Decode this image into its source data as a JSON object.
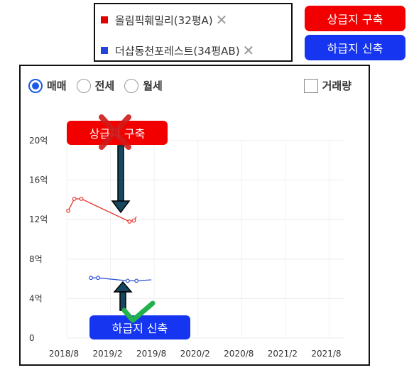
{
  "legend": {
    "items": [
      {
        "name": "올림픽훼밀리(32평A)",
        "color": "#e00000"
      },
      {
        "name": "더샵동천포레스트(34평AB)",
        "color": "#2244dd"
      }
    ],
    "remove_label": "✕"
  },
  "tags": {
    "red": "상급지 구축",
    "blue": "하급지 신축"
  },
  "controls": {
    "radios": [
      {
        "label": "매매",
        "checked": true
      },
      {
        "label": "전세",
        "checked": false
      },
      {
        "label": "월세",
        "checked": false
      }
    ],
    "volume_label": "거래량"
  },
  "annotations": {
    "red": "상급지 구축",
    "blue": "하급지 신축"
  },
  "chart_data": {
    "type": "line",
    "y_tick_labels": [
      "0",
      "4억",
      "8억",
      "12억",
      "16억",
      "20억"
    ],
    "y_ticks": [
      0,
      4,
      8,
      12,
      16,
      20
    ],
    "ylim": [
      0,
      20
    ],
    "x_tick_labels": [
      "2018/8",
      "2019/2",
      "2019/8",
      "2020/2",
      "2020/8",
      "2021/2",
      "2021/8"
    ],
    "x_ticks": [
      2018.583,
      2019.083,
      2019.583,
      2020.083,
      2020.583,
      2021.083,
      2021.583
    ],
    "xlim": [
      2018.583,
      2021.75
    ],
    "grid": true,
    "series": [
      {
        "name": "올림픽훼밀리(32평A)",
        "color": "#e8302a",
        "x": [
          2018.6,
          2018.67,
          2018.75,
          2019.3,
          2019.35,
          2019.38
        ],
        "y": [
          12.9,
          14.1,
          14.1,
          11.8,
          11.9,
          12.3
        ],
        "markers": [
          true,
          true,
          true,
          true,
          true,
          false
        ]
      },
      {
        "name": "더샵동천포레스트(34평AB)",
        "color": "#2e52d4",
        "x": [
          2018.86,
          2018.94,
          2019.28,
          2019.38,
          2019.55
        ],
        "y": [
          6.1,
          6.1,
          5.8,
          5.8,
          5.9
        ],
        "markers": [
          true,
          true,
          true,
          true,
          false
        ]
      }
    ]
  }
}
